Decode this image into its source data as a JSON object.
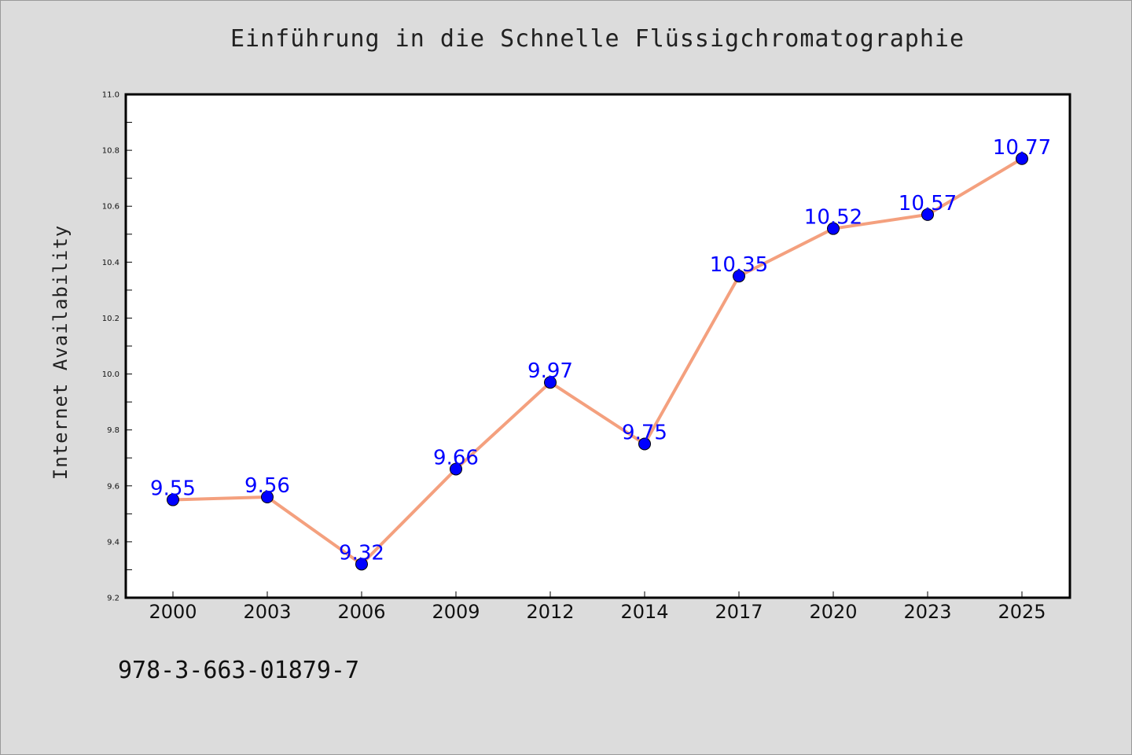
{
  "chart_data": {
    "type": "line",
    "title": "Einführung in die Schnelle Flüssigchromatographie",
    "ylabel": "Internet Availability",
    "xlabel": "",
    "categories": [
      "2000",
      "2003",
      "2006",
      "2009",
      "2012",
      "2014",
      "2017",
      "2020",
      "2023",
      "2025"
    ],
    "series": [
      {
        "values": [
          9.55,
          9.56,
          9.32,
          9.66,
          9.97,
          9.75,
          10.35,
          10.52,
          10.57,
          10.77
        ],
        "labels": [
          "9.55",
          "9.56",
          "9.32",
          "9.66",
          "9.97",
          "9.75",
          "10.35",
          "10.52",
          "10.57",
          "10.77"
        ],
        "line_color": "#f4a07e",
        "marker_color": "#0000ff"
      }
    ],
    "ylim": [
      9.2,
      11.0
    ],
    "yticks": [
      "9.2",
      "9.4",
      "9.6",
      "9.8",
      "10.0",
      "10.2",
      "10.4",
      "10.6",
      "10.8",
      "11.0"
    ],
    "label_color": "#0000ff",
    "grid": false,
    "legend": "none"
  },
  "footer": {
    "isbn": "978-3-663-01879-7"
  }
}
